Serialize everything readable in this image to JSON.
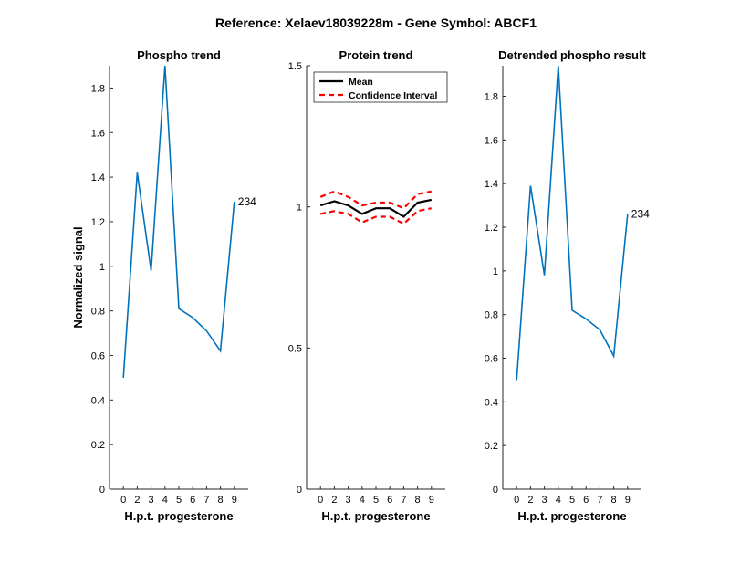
{
  "figure_title": "Reference:  Xelaev18039228m - Gene Symbol:  ABCF1",
  "colors": {
    "series": "#0072BD",
    "mean": "#000000",
    "ci": "#FF0000",
    "axis": "#262626"
  },
  "chart_data": [
    {
      "type": "line",
      "title": "Phospho trend",
      "xlabel": "H.p.t. progesterone",
      "ylabel": "Normalized signal",
      "ylim": [
        0,
        1.9
      ],
      "yticks": [
        0,
        0.2,
        0.4,
        0.6,
        0.8,
        1,
        1.2,
        1.4,
        1.6,
        1.8
      ],
      "ytick_labels": [
        "0",
        "0.2",
        "0.4",
        "0.6",
        "0.8",
        "1",
        "1.2",
        "1.4",
        "1.6",
        "1.8"
      ],
      "x": [
        1,
        2,
        3,
        4,
        5,
        6,
        7,
        8,
        9
      ],
      "xlim": [
        0,
        10
      ],
      "xtick_labels": [
        "0",
        "2",
        "3",
        "4",
        "5",
        "6",
        "7",
        "8",
        "9"
      ],
      "series": [
        {
          "values": [
            0.5,
            1.42,
            0.98,
            1.9,
            0.81,
            0.77,
            0.71,
            0.62,
            1.29
          ]
        }
      ],
      "annotation": "234",
      "legend": null
    },
    {
      "type": "line",
      "title": "Protein trend",
      "xlabel": "H.p.t. progesterone",
      "ylabel": "",
      "ylim": [
        0,
        1.5
      ],
      "yticks": [
        0,
        0.5,
        1,
        1.5
      ],
      "ytick_labels": [
        "0",
        "0.5",
        "1",
        "1.5"
      ],
      "x": [
        1,
        2,
        3,
        4,
        5,
        6,
        7,
        8,
        9
      ],
      "xlim": [
        0,
        10
      ],
      "xtick_labels": [
        "0",
        "2",
        "3",
        "4",
        "5",
        "6",
        "7",
        "8",
        "9"
      ],
      "series": [
        {
          "name": "Mean",
          "style": "solid",
          "values": [
            1.005,
            1.02,
            1.005,
            0.975,
            0.995,
            0.995,
            0.965,
            1.015,
            1.025
          ]
        },
        {
          "name": "Confidence Interval",
          "style": "dashed",
          "values": [
            1.035,
            1.055,
            1.035,
            1.005,
            1.015,
            1.015,
            0.995,
            1.045,
            1.055
          ]
        },
        {
          "style": "dashed",
          "values": [
            0.975,
            0.985,
            0.975,
            0.945,
            0.965,
            0.965,
            0.94,
            0.985,
            0.995
          ]
        }
      ],
      "annotation": "",
      "legend": "top-left"
    },
    {
      "type": "line",
      "title": "Detrended phospho result",
      "xlabel": "H.p.t. progesterone",
      "ylabel": "",
      "ylim": [
        0,
        1.94
      ],
      "yticks": [
        0,
        0.2,
        0.4,
        0.6,
        0.8,
        1,
        1.2,
        1.4,
        1.6,
        1.8
      ],
      "ytick_labels": [
        "0",
        "0.2",
        "0.4",
        "0.6",
        "0.8",
        "1",
        "1.2",
        "1.4",
        "1.6",
        "1.8"
      ],
      "x": [
        1,
        2,
        3,
        4,
        5,
        6,
        7,
        8,
        9
      ],
      "xlim": [
        0,
        10
      ],
      "xtick_labels": [
        "0",
        "2",
        "3",
        "4",
        "5",
        "6",
        "7",
        "8",
        "9"
      ],
      "series": [
        {
          "values": [
            0.5,
            1.39,
            0.98,
            1.94,
            0.82,
            0.78,
            0.73,
            0.61,
            1.26
          ]
        }
      ],
      "annotation": "234",
      "legend": null
    }
  ]
}
